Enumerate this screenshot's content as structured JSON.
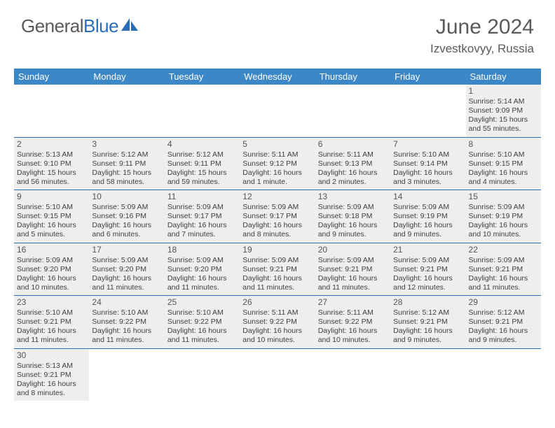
{
  "logo": {
    "text1": "General",
    "text2": "Blue"
  },
  "title": "June 2024",
  "location": "Izvestkovyy, Russia",
  "colors": {
    "header_bg": "#3b87c8",
    "header_text": "#ffffff",
    "border": "#2a6fb5",
    "cell_bg": "#eeeeee",
    "text": "#404040",
    "logo_gray": "#5a5a5a",
    "logo_blue": "#2a6fb5"
  },
  "dayNames": [
    "Sunday",
    "Monday",
    "Tuesday",
    "Wednesday",
    "Thursday",
    "Friday",
    "Saturday"
  ],
  "weeks": [
    [
      null,
      null,
      null,
      null,
      null,
      null,
      {
        "n": "1",
        "sr": "5:14 AM",
        "ss": "9:09 PM",
        "dl": "15 hours and 55 minutes."
      }
    ],
    [
      {
        "n": "2",
        "sr": "5:13 AM",
        "ss": "9:10 PM",
        "dl": "15 hours and 56 minutes."
      },
      {
        "n": "3",
        "sr": "5:12 AM",
        "ss": "9:11 PM",
        "dl": "15 hours and 58 minutes."
      },
      {
        "n": "4",
        "sr": "5:12 AM",
        "ss": "9:11 PM",
        "dl": "15 hours and 59 minutes."
      },
      {
        "n": "5",
        "sr": "5:11 AM",
        "ss": "9:12 PM",
        "dl": "16 hours and 1 minute."
      },
      {
        "n": "6",
        "sr": "5:11 AM",
        "ss": "9:13 PM",
        "dl": "16 hours and 2 minutes."
      },
      {
        "n": "7",
        "sr": "5:10 AM",
        "ss": "9:14 PM",
        "dl": "16 hours and 3 minutes."
      },
      {
        "n": "8",
        "sr": "5:10 AM",
        "ss": "9:15 PM",
        "dl": "16 hours and 4 minutes."
      }
    ],
    [
      {
        "n": "9",
        "sr": "5:10 AM",
        "ss": "9:15 PM",
        "dl": "16 hours and 5 minutes."
      },
      {
        "n": "10",
        "sr": "5:09 AM",
        "ss": "9:16 PM",
        "dl": "16 hours and 6 minutes."
      },
      {
        "n": "11",
        "sr": "5:09 AM",
        "ss": "9:17 PM",
        "dl": "16 hours and 7 minutes."
      },
      {
        "n": "12",
        "sr": "5:09 AM",
        "ss": "9:17 PM",
        "dl": "16 hours and 8 minutes."
      },
      {
        "n": "13",
        "sr": "5:09 AM",
        "ss": "9:18 PM",
        "dl": "16 hours and 9 minutes."
      },
      {
        "n": "14",
        "sr": "5:09 AM",
        "ss": "9:19 PM",
        "dl": "16 hours and 9 minutes."
      },
      {
        "n": "15",
        "sr": "5:09 AM",
        "ss": "9:19 PM",
        "dl": "16 hours and 10 minutes."
      }
    ],
    [
      {
        "n": "16",
        "sr": "5:09 AM",
        "ss": "9:20 PM",
        "dl": "16 hours and 10 minutes."
      },
      {
        "n": "17",
        "sr": "5:09 AM",
        "ss": "9:20 PM",
        "dl": "16 hours and 11 minutes."
      },
      {
        "n": "18",
        "sr": "5:09 AM",
        "ss": "9:20 PM",
        "dl": "16 hours and 11 minutes."
      },
      {
        "n": "19",
        "sr": "5:09 AM",
        "ss": "9:21 PM",
        "dl": "16 hours and 11 minutes."
      },
      {
        "n": "20",
        "sr": "5:09 AM",
        "ss": "9:21 PM",
        "dl": "16 hours and 11 minutes."
      },
      {
        "n": "21",
        "sr": "5:09 AM",
        "ss": "9:21 PM",
        "dl": "16 hours and 12 minutes."
      },
      {
        "n": "22",
        "sr": "5:09 AM",
        "ss": "9:21 PM",
        "dl": "16 hours and 11 minutes."
      }
    ],
    [
      {
        "n": "23",
        "sr": "5:10 AM",
        "ss": "9:21 PM",
        "dl": "16 hours and 11 minutes."
      },
      {
        "n": "24",
        "sr": "5:10 AM",
        "ss": "9:22 PM",
        "dl": "16 hours and 11 minutes."
      },
      {
        "n": "25",
        "sr": "5:10 AM",
        "ss": "9:22 PM",
        "dl": "16 hours and 11 minutes."
      },
      {
        "n": "26",
        "sr": "5:11 AM",
        "ss": "9:22 PM",
        "dl": "16 hours and 10 minutes."
      },
      {
        "n": "27",
        "sr": "5:11 AM",
        "ss": "9:22 PM",
        "dl": "16 hours and 10 minutes."
      },
      {
        "n": "28",
        "sr": "5:12 AM",
        "ss": "9:21 PM",
        "dl": "16 hours and 9 minutes."
      },
      {
        "n": "29",
        "sr": "5:12 AM",
        "ss": "9:21 PM",
        "dl": "16 hours and 9 minutes."
      }
    ],
    [
      {
        "n": "30",
        "sr": "5:13 AM",
        "ss": "9:21 PM",
        "dl": "16 hours and 8 minutes."
      },
      null,
      null,
      null,
      null,
      null,
      null
    ]
  ],
  "labels": {
    "sunrise": "Sunrise: ",
    "sunset": "Sunset: ",
    "daylight": "Daylight: "
  }
}
